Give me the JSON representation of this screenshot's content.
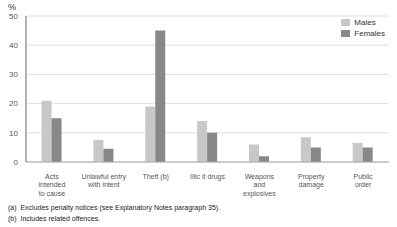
{
  "chart_data": {
    "type": "bar",
    "categories": [
      "Acts\nintended\nto cause\ninjury",
      "Unlawful entry\nwith intent",
      "Theft (b)",
      "Illic it drugs",
      "Weapons\nand\nexplosives",
      "Property\ndamage",
      "Public\norder"
    ],
    "series": [
      {
        "name": "Males",
        "color": "#c8c8c8",
        "values": [
          21,
          7.5,
          19,
          14,
          6,
          8.5,
          6.5
        ]
      },
      {
        "name": "Females",
        "color": "#888888",
        "values": [
          15,
          4.5,
          45,
          10,
          2,
          5,
          5
        ]
      }
    ],
    "ylabel": "%",
    "ylim": [
      0,
      50
    ],
    "yticks": [
      0,
      10,
      20,
      30,
      40,
      50
    ],
    "grid": true,
    "legend": "upper right",
    "annotations": [
      "(a)  Excludes penalty notices (see Explanatory Notes paragraph 35).",
      "(b)  Includes related offences."
    ]
  }
}
